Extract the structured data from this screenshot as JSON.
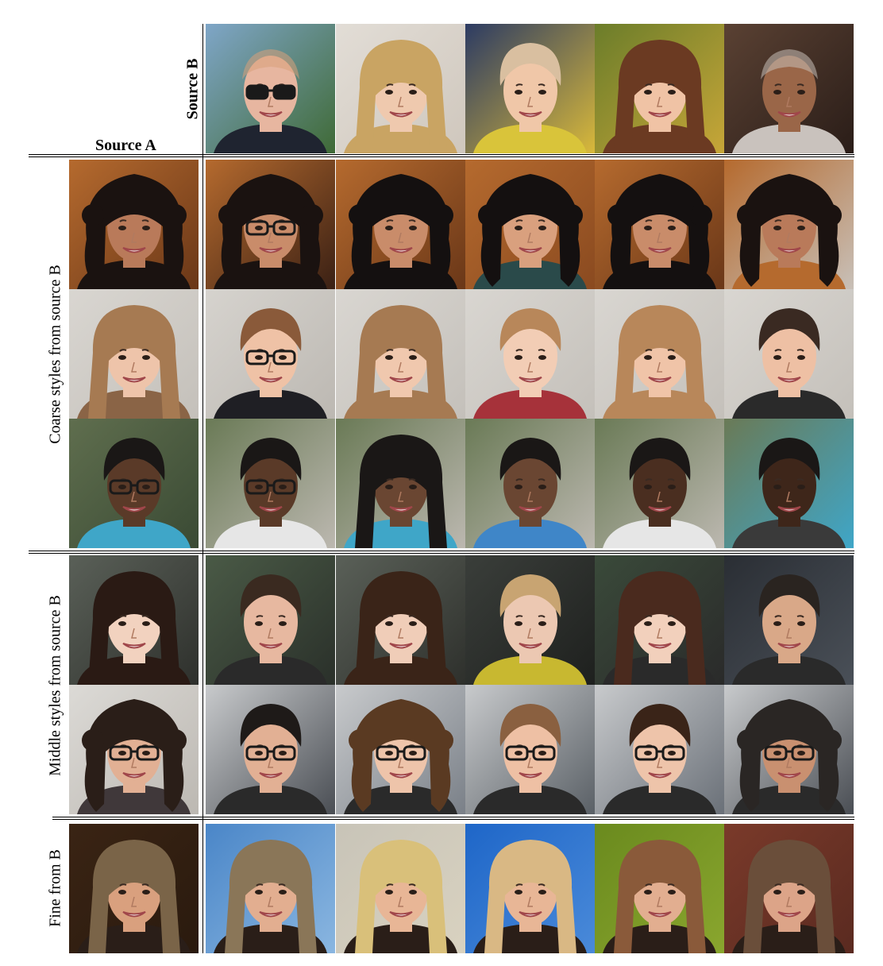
{
  "labels": {
    "source_a": "Source A",
    "source_b": "Source B",
    "coarse": "Coarse styles from source B",
    "middle": "Middle styles from source B",
    "fine": "Fine from B"
  },
  "colors": {
    "rule": "#000000",
    "background": "#ffffff"
  },
  "faces": {
    "source_b": [
      {
        "bg": "#7fa6c8",
        "bg2": "#3f6a36",
        "skin": "#e7b6a0",
        "hair": "#d9a07a",
        "shirt": "#1f2430",
        "glasses": true,
        "hair_style": "bald"
      },
      {
        "bg": "#e2ddd6",
        "bg2": "#cfc7bd",
        "skin": "#efc9ae",
        "hair": "#c9a463",
        "shirt": "#c9a463",
        "glasses": false,
        "hair_style": "long"
      },
      {
        "bg": "#2c3b63",
        "bg2": "#d9b93a",
        "skin": "#f0c7a8",
        "hair": "#d9bfa0",
        "shirt": "#d9c43a",
        "glasses": false,
        "hair_style": "short"
      },
      {
        "bg": "#6b7d2a",
        "bg2": "#c7a638",
        "skin": "#f0c3a5",
        "hair": "#6b3a22",
        "shirt": "#6b3a22",
        "glasses": false,
        "hair_style": "long"
      },
      {
        "bg": "#5a4133",
        "bg2": "#2a1d18",
        "skin": "#9a6648",
        "hair": "#c8c0b8",
        "shirt": "#c9c2bd",
        "glasses": false,
        "hair_style": "bald"
      }
    ],
    "source_a_rows": [
      {
        "bg": "#b56a2e",
        "bg2": "#6a3718",
        "skin": "#b97a5a",
        "hair": "#1a1210",
        "shirt": "#1a1210",
        "glasses": false,
        "hair_style": "curly"
      },
      {
        "bg": "#d9d6d1",
        "bg2": "#c4c0ba",
        "skin": "#eec4aa",
        "hair": "#a67a52",
        "shirt": "#8a6446",
        "glasses": false,
        "hair_style": "long"
      },
      {
        "bg": "#5f6e4e",
        "bg2": "#3a4a34",
        "skin": "#5a3a28",
        "hair": "#1a1716",
        "shirt": "#3fa6c8",
        "glasses": true,
        "hair_style": "short"
      },
      {
        "bg": "#5a6058",
        "bg2": "#2e302c",
        "skin": "#f2d2bf",
        "hair": "#2a1a14",
        "shirt": "#2a1a14",
        "glasses": false,
        "hair_style": "long"
      },
      {
        "bg": "#dcdad6",
        "bg2": "#bcb8b2",
        "skin": "#e2b094",
        "hair": "#2a1e18",
        "shirt": "#40383a",
        "glasses": true,
        "hair_style": "curly"
      },
      {
        "bg": "#3a2414",
        "bg2": "#2a1a0e",
        "skin": "#d9a07e",
        "hair": "#7a6448",
        "shirt": "#2a1e18",
        "glasses": false,
        "hair_style": "long"
      }
    ],
    "grid_rows": [
      [
        {
          "bg": "#b56a2e",
          "bg2": "#3a2014",
          "skin": "#c98c6a",
          "hair": "#1a1210",
          "shirt": "#1a1210",
          "glasses": true,
          "hair_style": "curly"
        },
        {
          "bg": "#b56a2e",
          "bg2": "#6a3718",
          "skin": "#c98c6a",
          "hair": "#141010",
          "shirt": "#141010",
          "glasses": false,
          "hair_style": "curly"
        },
        {
          "bg": "#b56a2e",
          "bg2": "#8a4a20",
          "skin": "#d9a07e",
          "hair": "#141010",
          "shirt": "#2a4a4a",
          "glasses": false,
          "hair_style": "curly"
        },
        {
          "bg": "#b56a2e",
          "bg2": "#6a3718",
          "skin": "#c98c6a",
          "hair": "#141010",
          "shirt": "#141010",
          "glasses": false,
          "hair_style": "curly"
        },
        {
          "bg": "#b56a2e",
          "bg2": "#c8c0b8",
          "skin": "#b97a5a",
          "hair": "#1a1210",
          "shirt": "#b56a2e",
          "glasses": false,
          "hair_style": "curly"
        }
      ],
      [
        {
          "bg": "#d6d3ce",
          "bg2": "#bcb8b2",
          "skin": "#efc2a6",
          "hair": "#8a5a3a",
          "shirt": "#1f1f24",
          "glasses": true,
          "hair_style": "short"
        },
        {
          "bg": "#d9d6d1",
          "bg2": "#c4c0ba",
          "skin": "#f0c8ae",
          "hair": "#a67a52",
          "shirt": "#a67a52",
          "glasses": false,
          "hair_style": "long"
        },
        {
          "bg": "#d9d6d1",
          "bg2": "#c4c0ba",
          "skin": "#f2cdb5",
          "hair": "#b8875a",
          "shirt": "#a6323a",
          "glasses": false,
          "hair_style": "short"
        },
        {
          "bg": "#d9d6d1",
          "bg2": "#c4c0ba",
          "skin": "#f0c4a8",
          "hair": "#b8875a",
          "shirt": "#b8875a",
          "glasses": false,
          "hair_style": "long"
        },
        {
          "bg": "#d9d6d1",
          "bg2": "#c4c0ba",
          "skin": "#eec0a4",
          "hair": "#3a2a22",
          "shirt": "#2a2a2a",
          "glasses": false,
          "hair_style": "short"
        }
      ],
      [
        {
          "bg": "#6a7a56",
          "bg2": "#bcb8b0",
          "skin": "#5a3a28",
          "hair": "#1a1716",
          "shirt": "#e6e6e6",
          "glasses": true,
          "hair_style": "short"
        },
        {
          "bg": "#6a7a56",
          "bg2": "#bcb8b0",
          "skin": "#6a4632",
          "hair": "#1a1716",
          "shirt": "#3fa6c8",
          "glasses": false,
          "hair_style": "long"
        },
        {
          "bg": "#6a7a56",
          "bg2": "#bcb8b0",
          "skin": "#6a4632",
          "hair": "#1a1716",
          "shirt": "#3f86c8",
          "glasses": false,
          "hair_style": "short"
        },
        {
          "bg": "#6a7a56",
          "bg2": "#bcb8b0",
          "skin": "#4a2e20",
          "hair": "#1a1716",
          "shirt": "#e6e6e6",
          "glasses": false,
          "hair_style": "short"
        },
        {
          "bg": "#6a7a56",
          "bg2": "#3fa6c8",
          "skin": "#3e261a",
          "hair": "#1a1716",
          "shirt": "#3a3a3a",
          "glasses": false,
          "hair_style": "short"
        }
      ],
      [
        {
          "bg": "#4a5a46",
          "bg2": "#2a302a",
          "skin": "#e7b8a0",
          "hair": "#3a2a20",
          "shirt": "#2a2a2a",
          "glasses": false,
          "hair_style": "short"
        },
        {
          "bg": "#5a6058",
          "bg2": "#2e302c",
          "skin": "#f0cdb8",
          "hair": "#3a2418",
          "shirt": "#3a2418",
          "glasses": false,
          "hair_style": "long"
        },
        {
          "bg": "#3a3e3a",
          "bg2": "#1e201e",
          "skin": "#ecc8b2",
          "hair": "#c8a472",
          "shirt": "#c8b830",
          "glasses": false,
          "hair_style": "short"
        },
        {
          "bg": "#3a4a3a",
          "bg2": "#2a2a2a",
          "skin": "#f2d0bc",
          "hair": "#4a2a1e",
          "shirt": "#2a2a2a",
          "glasses": false,
          "hair_style": "long"
        },
        {
          "bg": "#2a2e34",
          "bg2": "#4a5058",
          "skin": "#d9a888",
          "hair": "#2a2420",
          "shirt": "#2a2a2a",
          "glasses": false,
          "hair_style": "short"
        }
      ],
      [
        {
          "bg": "#c8cacc",
          "bg2": "#4a4e54",
          "skin": "#e2b094",
          "hair": "#1e1a18",
          "shirt": "#2a2a2a",
          "glasses": true,
          "hair_style": "short"
        },
        {
          "bg": "#c8cacc",
          "bg2": "#7a8088",
          "skin": "#eec4aa",
          "hair": "#5a3a22",
          "shirt": "#2a2a2a",
          "glasses": true,
          "hair_style": "curly"
        },
        {
          "bg": "#c8cacc",
          "bg2": "#5a6066",
          "skin": "#eec0a4",
          "hair": "#8a6040",
          "shirt": "#2a2a2a",
          "glasses": true,
          "hair_style": "short"
        },
        {
          "bg": "#c8cacc",
          "bg2": "#6a7078",
          "skin": "#eec4aa",
          "hair": "#3a2418",
          "shirt": "#2a2a2a",
          "glasses": true,
          "hair_style": "short"
        },
        {
          "bg": "#c8cacc",
          "bg2": "#4a4e54",
          "skin": "#c99070",
          "hair": "#2a2624",
          "shirt": "#2a2a2a",
          "glasses": true,
          "hair_style": "curly"
        }
      ],
      [
        {
          "bg": "#4a86c8",
          "bg2": "#8ab6e0",
          "skin": "#e2ae90",
          "hair": "#8a7658",
          "shirt": "#2a1e18",
          "glasses": false,
          "hair_style": "long"
        },
        {
          "bg": "#c8c4b8",
          "bg2": "#d9d2c0",
          "skin": "#e8b696",
          "hair": "#d9c07a",
          "shirt": "#2a1e18",
          "glasses": false,
          "hair_style": "long"
        },
        {
          "bg": "#1e66c8",
          "bg2": "#4a8ad9",
          "skin": "#e8b696",
          "hair": "#d9b884",
          "shirt": "#2a1e18",
          "glasses": false,
          "hair_style": "long"
        },
        {
          "bg": "#6a8a1e",
          "bg2": "#8aa62e",
          "skin": "#e2ae90",
          "hair": "#8a5a3a",
          "shirt": "#2a1e18",
          "glasses": false,
          "hair_style": "long"
        },
        {
          "bg": "#7a3a2a",
          "bg2": "#5a2a20",
          "skin": "#dca488",
          "hair": "#6a4e3a",
          "shirt": "#2a1e18",
          "glasses": false,
          "hair_style": "long"
        }
      ]
    ]
  }
}
